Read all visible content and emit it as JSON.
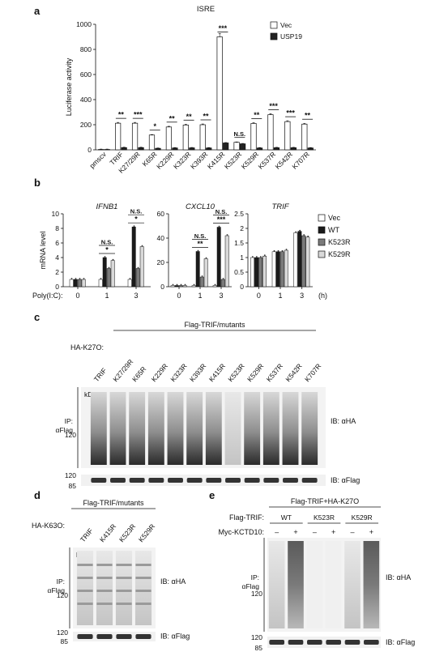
{
  "panels": {
    "a": "a",
    "b": "b",
    "c": "c",
    "d": "d",
    "e": "e"
  },
  "chart_data": [
    {
      "type": "bar",
      "panel": "a",
      "title": "ISRE",
      "ylabel": "Luciferase activity",
      "ylim": [
        0,
        1000
      ],
      "yticks": [
        0,
        200,
        400,
        600,
        800,
        1000
      ],
      "categories": [
        "pmscv",
        "TRIF",
        "K27/29R",
        "K65R",
        "K229R",
        "K323R",
        "K393R",
        "K415R",
        "K523R",
        "K529R",
        "K537R",
        "K542R",
        "K707R"
      ],
      "series": [
        {
          "name": "Vec",
          "color": "#ffffff",
          "values": [
            3,
            212,
            212,
            118,
            182,
            198,
            200,
            900,
            60,
            210,
            280,
            225,
            205
          ]
        },
        {
          "name": "USP19",
          "color": "#222222",
          "values": [
            3,
            18,
            18,
            12,
            15,
            16,
            15,
            55,
            48,
            15,
            17,
            17,
            15
          ]
        }
      ],
      "significance": [
        "",
        "**",
        "***",
        "*",
        "**",
        "**",
        "**",
        "***",
        "N.S.",
        "**",
        "***",
        "***",
        "**"
      ],
      "legend_position": "top-right"
    },
    {
      "type": "bar",
      "panel": "b",
      "ylabel": "mRNA level",
      "xlabel_prefix": "Poly(I:C):",
      "x_unit": "(h)",
      "categories": [
        "0",
        "1",
        "3"
      ],
      "legend": [
        {
          "name": "Vec",
          "color": "#ffffff"
        },
        {
          "name": "WT",
          "color": "#1a1a1a"
        },
        {
          "name": "K523R",
          "color": "#7a7a7a"
        },
        {
          "name": "K529R",
          "color": "#d9d9d9"
        }
      ],
      "subplots": [
        {
          "title": "IFNB1",
          "ylim": [
            0,
            10
          ],
          "yticks": [
            0,
            2,
            4,
            6,
            8,
            10
          ],
          "values": [
            [
              1,
              1,
              1,
              1
            ],
            [
              1,
              4,
              2.5,
              3.6
            ],
            [
              1,
              8.2,
              2.5,
              5.5
            ]
          ],
          "annotations": [
            {
              "group": 1,
              "text": "N.S."
            },
            {
              "group": 1,
              "text": "*"
            },
            {
              "group": 2,
              "text": "N.S."
            },
            {
              "group": 2,
              "text": "*"
            }
          ]
        },
        {
          "title": "CXCL10",
          "ylim": [
            0,
            60
          ],
          "yticks": [
            0,
            20,
            40,
            60
          ],
          "values": [
            [
              1,
              1,
              1,
              1
            ],
            [
              1,
              29,
              8,
              23
            ],
            [
              1,
              49,
              6,
              42
            ]
          ],
          "annotations": [
            {
              "group": 1,
              "text": "N.S."
            },
            {
              "group": 1,
              "text": "**"
            },
            {
              "group": 2,
              "text": "N.S."
            },
            {
              "group": 2,
              "text": "***"
            }
          ]
        },
        {
          "title": "TRIF",
          "ylim": [
            0,
            2.5
          ],
          "yticks": [
            0,
            0.5,
            1,
            1.5,
            2,
            2.5
          ],
          "values": [
            [
              1,
              1,
              1,
              1.05
            ],
            [
              1.2,
              1.2,
              1.2,
              1.25
            ],
            [
              1.85,
              1.9,
              1.75,
              1.7
            ]
          ],
          "annotations": []
        }
      ]
    }
  ],
  "blot_c": {
    "header": "Flag-TRIF/mutants",
    "row_label": "HA-K27O:",
    "lanes": [
      "TRIF",
      "K27/29R",
      "K65R",
      "K229R",
      "K323R",
      "K393R",
      "K415R",
      "K523R",
      "K529R",
      "K537R",
      "K542R",
      "K707R"
    ],
    "kda_label": "kDa",
    "markers": [
      "120"
    ],
    "bottom_markers": [
      "120",
      "85"
    ],
    "side_label_1": "IP:",
    "side_label_2": "αFlag",
    "ib_top": "IB: αHA",
    "ib_bottom": "IB: αFlag"
  },
  "blot_d": {
    "header": "Flag-TRIF/mutants",
    "row_label": "HA-K63O:",
    "lanes": [
      "TRIF",
      "K415R",
      "K523R",
      "K529R"
    ],
    "kda_label": "kDa",
    "markers": [
      "120"
    ],
    "bottom_markers": [
      "120",
      "85"
    ],
    "side_label_1": "IP:",
    "side_label_2": "αFlag",
    "ib_top": "IB: αHA",
    "ib_bottom": "IB: αFlag"
  },
  "blot_e": {
    "header": "Flag-TRIF+HA-K27O",
    "row1_label": "Flag-TRIF:",
    "groups": [
      "WT",
      "K523R",
      "K529R"
    ],
    "row2_label": "Myc-KCTD10:",
    "signs": [
      "–",
      "+",
      "–",
      "+",
      "–",
      "+"
    ],
    "kda_label": "kDa",
    "markers": [
      "120"
    ],
    "bottom_markers": [
      "120",
      "85"
    ],
    "side_label_1": "IP:",
    "side_label_2": "αFlag",
    "ib_top": "IB: αHA",
    "ib_bottom": "IB: αFlag"
  }
}
